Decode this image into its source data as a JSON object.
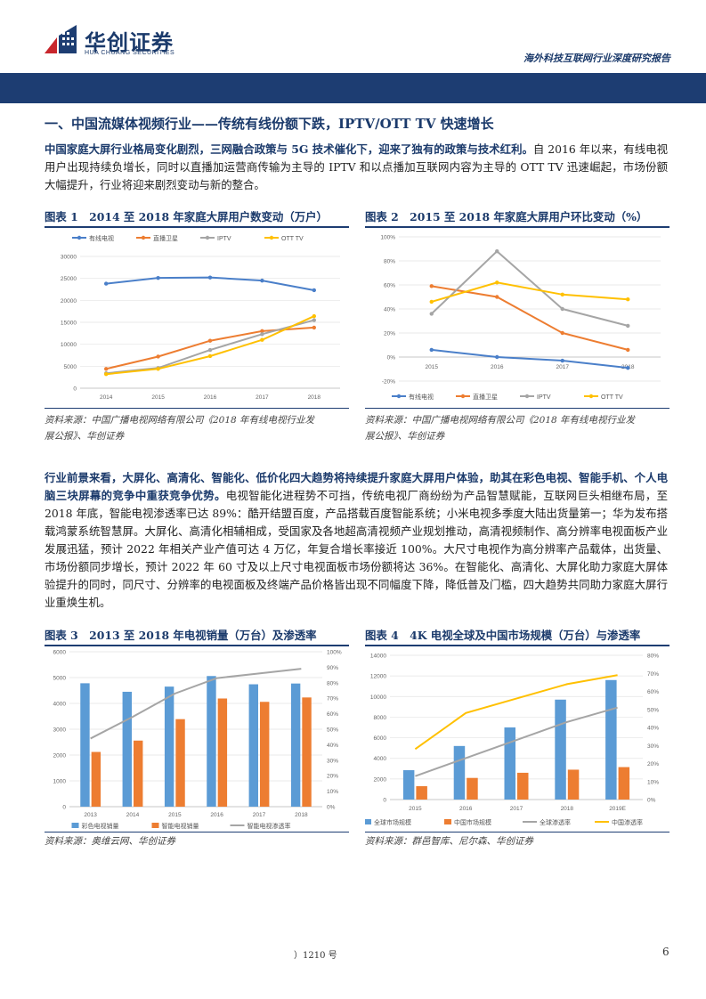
{
  "header": {
    "brand_cn": "华创证券",
    "brand_en": "HUA CHUANG SECURITIES",
    "report_title": "海外科技互联网行业深度研究报告"
  },
  "section": {
    "title": "一、中国流媒体视频行业——传统有线份额下跌，IPTV/OTT TV 快速增长"
  },
  "para1": {
    "bold": "中国家庭大屏行业格局变化剧烈，三网融合政策与 5G 技术催化下，迎来了独有的政策与技术红利。",
    "rest": "自 2016 年以来，有线电视用户出现持续负增长，同时以直播加运营商传输为主导的 IPTV 和以点播加互联网内容为主导的 OTT TV 迅速崛起，市场份额大幅提升，行业将迎来剧烈变动与新的整合。"
  },
  "para2": {
    "bold": "行业前景来看，大屏化、高清化、智能化、低价化四大趋势将持续提升家庭大屏用户体验，助其在彩色电视、智能手机、个人电脑三块屏幕的竞争中重获竞争优势。",
    "rest": "电视智能化进程势不可挡，传统电视厂商纷纷为产品智慧赋能，互联网巨头相继布局，至 2018 年底，智能电视渗透率已达 89%：酷开结盟百度，产品搭载百度智能系统；小米电视多季度大陆出货量第一；华为发布搭载鸿蒙系统智慧屏。大屏化、高清化相辅相成，受国家及各地超高清视频产业规划推动，高清视频制作、高分辨率电视面板产业发展迅猛，预计 2022 年相关产业产值可达 4 万亿，年复合增长率接近 100%。大尺寸电视作为高分辨率产品载体，出货量、市场份额同步增长，预计 2022 年 60 寸及以上尺寸电视面板市场份额将达 36%。在智能化、高清化、大屏化助力家庭大屏体验提升的同时，同尺寸、分辨率的电视面板及终端产品价格皆出现不同幅度下降，降低普及门槛，四大趋势共同助力家庭大屏行业重焕生机。"
  },
  "figures": {
    "f1_title": "图表 1　2014 至 2018 年家庭大屏用户数变动（万户）",
    "f2_title": "图表 2　2015 至 2018 年家庭大屏用户环比变动（%）",
    "f3_title": "图表 3　2013 至 2018 年电视销量（万台）及渗透率",
    "f4_title": "图表 4　4K 电视全球及中国市场规模（万台）与渗透率",
    "src12_line1": "资料来源：中国广播电视网络有限公司《2018 年有线电视行业发",
    "src12_line2": "展公报》、华创证券",
    "src3": "资料来源：奥维云网、华创证券",
    "src4": "资料来源：群邑智库、尼尔森、华创证券"
  },
  "footer": {
    "left": "）1210 号",
    "page": "6"
  },
  "chart_data": [
    {
      "type": "line",
      "categories": [
        "2014",
        "2015",
        "2016",
        "2017",
        "2018"
      ],
      "series": [
        {
          "name": "有线电视",
          "color": "#4a7fc9",
          "values": [
            23800,
            25100,
            25200,
            24500,
            22300
          ]
        },
        {
          "name": "直播卫星",
          "color": "#ed7d31",
          "values": [
            4400,
            7200,
            10800,
            13000,
            13800
          ]
        },
        {
          "name": "IPTV",
          "color": "#a5a5a5",
          "values": [
            3400,
            4600,
            8700,
            12300,
            15500
          ]
        },
        {
          "name": "OTT TV",
          "color": "#ffc000",
          "values": [
            3200,
            4400,
            7300,
            11000,
            16400
          ]
        }
      ],
      "ylim": [
        0,
        30000
      ],
      "yticks": [
        "0",
        "5000",
        "10000",
        "15000",
        "20000",
        "25000",
        "30000"
      ],
      "legend": "top"
    },
    {
      "type": "line",
      "categories": [
        "2015",
        "2016",
        "2017",
        "2018"
      ],
      "series": [
        {
          "name": "有线电视",
          "color": "#4a7fc9",
          "values": [
            6,
            0,
            -3,
            -9
          ]
        },
        {
          "name": "直播卫星",
          "color": "#ed7d31",
          "values": [
            59,
            50,
            20,
            6
          ]
        },
        {
          "name": "IPTV",
          "color": "#a5a5a5",
          "values": [
            36,
            88,
            40,
            26
          ]
        },
        {
          "name": "OTT TV",
          "color": "#ffc000",
          "values": [
            46,
            62,
            52,
            48
          ]
        }
      ],
      "ylim": [
        -20,
        100
      ],
      "yticks": [
        "-20%",
        "0%",
        "20%",
        "40%",
        "60%",
        "80%",
        "100%"
      ],
      "legend": "bottom"
    },
    {
      "type": "bar+line",
      "categories": [
        "2013",
        "2014",
        "2015",
        "2016",
        "2017",
        "2018"
      ],
      "bars": [
        {
          "name": "彩色电视销量",
          "color": "#5b9bd5",
          "values": [
            4780,
            4450,
            4650,
            5060,
            4740,
            4770
          ]
        },
        {
          "name": "智能电视销量",
          "color": "#ed7d31",
          "values": [
            2120,
            2560,
            3390,
            4190,
            4060,
            4230
          ]
        }
      ],
      "line": {
        "name": "智能电视渗透率",
        "color": "#a5a5a5",
        "values": [
          44,
          58,
          73,
          83,
          86,
          89
        ]
      },
      "ylim": [
        0,
        6000
      ],
      "yticks": [
        "0",
        "1000",
        "2000",
        "3000",
        "4000",
        "5000",
        "6000"
      ],
      "y2ticks": [
        "0%",
        "10%",
        "20%",
        "30%",
        "40%",
        "50%",
        "60%",
        "70%",
        "80%",
        "90%",
        "100%"
      ],
      "legend": "bottom"
    },
    {
      "type": "bar+line",
      "categories": [
        "2015",
        "2016",
        "2017",
        "2018",
        "2019E"
      ],
      "bars": [
        {
          "name": "全球市场规模",
          "color": "#5b9bd5",
          "values": [
            2850,
            5200,
            7000,
            9700,
            11600
          ]
        },
        {
          "name": "中国市场规模",
          "color": "#ed7d31",
          "values": [
            1300,
            2100,
            2600,
            2900,
            3150
          ]
        }
      ],
      "lines": [
        {
          "name": "全球渗透率",
          "color": "#a5a5a5",
          "values": [
            13,
            23,
            33,
            43,
            51
          ]
        },
        {
          "name": "中国渗透率",
          "color": "#ffc000",
          "values": [
            28,
            48,
            56,
            64,
            69
          ]
        }
      ],
      "ylim": [
        0,
        14000
      ],
      "yticks": [
        "0",
        "2000",
        "4000",
        "6000",
        "8000",
        "10000",
        "12000",
        "14000"
      ],
      "y2ticks": [
        "0%",
        "10%",
        "20%",
        "30%",
        "40%",
        "50%",
        "60%",
        "70%",
        "80%"
      ],
      "legend": "bottom"
    }
  ]
}
